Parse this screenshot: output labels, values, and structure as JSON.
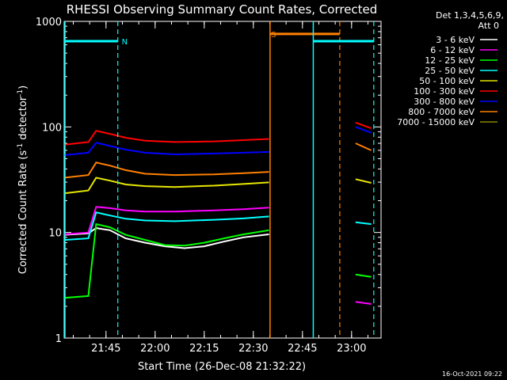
{
  "chart_data": {
    "type": "line",
    "title": "RHESSI Observing Summary Count Rates, Corrected",
    "xlabel": "Start Time (26-Dec-08 21:32:22)",
    "ylabel": "Corrected Count Rate (s",
    "ylabel_sup1": "-1",
    "ylabel_mid": " detector",
    "ylabel_sup2": "-1",
    "ylabel_end": ")",
    "yscale": "log",
    "xlim": [
      21.537,
      23.15
    ],
    "ylim": [
      1,
      1000
    ],
    "x_ticks": [
      {
        "x": 21.75,
        "label": "21:45"
      },
      {
        "x": 22.0,
        "label": "22:00"
      },
      {
        "x": 22.25,
        "label": "22:15"
      },
      {
        "x": 22.5,
        "label": "22:30"
      },
      {
        "x": 22.75,
        "label": "22:45"
      },
      {
        "x": 23.0,
        "label": "23:00"
      }
    ],
    "y_ticks": [
      {
        "y": 1,
        "label": "1"
      },
      {
        "y": 10,
        "label": "10"
      },
      {
        "y": 100,
        "label": "100"
      },
      {
        "y": 1000,
        "label": "1000"
      }
    ],
    "legend": {
      "position": "right",
      "header": [
        "Det 1,3,4,5,6,9,",
        "Att 0"
      ]
    },
    "series": [
      {
        "name": "3 - 6 keV",
        "color": "#ffffff",
        "points": [
          [
            21.537,
            9.5
          ],
          [
            21.66,
            9.8
          ],
          [
            21.7,
            11.0
          ],
          [
            21.77,
            10.5
          ],
          [
            21.85,
            8.8
          ],
          [
            21.95,
            8.0
          ],
          [
            22.05,
            7.4
          ],
          [
            22.15,
            7.1
          ],
          [
            22.25,
            7.4
          ],
          [
            22.35,
            8.2
          ],
          [
            22.45,
            9.0
          ],
          [
            22.58,
            9.6
          ]
        ]
      },
      {
        "name": "6 - 12 keV",
        "color": "#ff00ff",
        "points": [
          [
            21.537,
            9.6
          ],
          [
            21.66,
            10.0
          ],
          [
            21.7,
            17.5
          ],
          [
            21.77,
            17.0
          ],
          [
            21.85,
            16.2
          ],
          [
            21.95,
            15.8
          ],
          [
            22.1,
            15.8
          ],
          [
            22.3,
            16.2
          ],
          [
            22.45,
            16.6
          ],
          [
            22.58,
            17.2
          ],
          [
            23.02,
            2.2
          ],
          [
            23.1,
            2.1
          ]
        ]
      },
      {
        "name": "12 - 25 keV",
        "color": "#00ff00",
        "points": [
          [
            21.537,
            2.4
          ],
          [
            21.66,
            2.5
          ],
          [
            21.7,
            12.0
          ],
          [
            21.77,
            11.2
          ],
          [
            21.85,
            9.5
          ],
          [
            21.95,
            8.5
          ],
          [
            22.05,
            7.6
          ],
          [
            22.15,
            7.5
          ],
          [
            22.25,
            8.0
          ],
          [
            22.35,
            8.8
          ],
          [
            22.45,
            9.6
          ],
          [
            22.58,
            10.5
          ],
          [
            23.02,
            4.0
          ],
          [
            23.1,
            3.8
          ]
        ]
      },
      {
        "name": "25 - 50 keV",
        "color": "#00ffff",
        "points": [
          [
            21.537,
            8.5
          ],
          [
            21.66,
            8.8
          ],
          [
            21.7,
            15.5
          ],
          [
            21.77,
            14.5
          ],
          [
            21.85,
            13.5
          ],
          [
            21.95,
            13.0
          ],
          [
            22.1,
            12.8
          ],
          [
            22.3,
            13.2
          ],
          [
            22.45,
            13.6
          ],
          [
            22.58,
            14.2
          ],
          [
            23.02,
            12.5
          ],
          [
            23.1,
            12.0
          ]
        ]
      },
      {
        "name": "50 - 100 keV",
        "color": "#e6e600",
        "points": [
          [
            21.537,
            23.5
          ],
          [
            21.66,
            25.0
          ],
          [
            21.7,
            33.0
          ],
          [
            21.77,
            31.0
          ],
          [
            21.85,
            28.5
          ],
          [
            21.95,
            27.5
          ],
          [
            22.1,
            27.0
          ],
          [
            22.3,
            27.8
          ],
          [
            22.45,
            28.8
          ],
          [
            22.58,
            29.8
          ],
          [
            23.02,
            32.0
          ],
          [
            23.1,
            29.5
          ]
        ]
      },
      {
        "name": "100 - 300 keV",
        "color": "#ff0000",
        "points": [
          [
            21.537,
            68.0
          ],
          [
            21.66,
            72.0
          ],
          [
            21.7,
            92.0
          ],
          [
            21.77,
            86.0
          ],
          [
            21.85,
            79.0
          ],
          [
            21.95,
            74.0
          ],
          [
            22.1,
            72.0
          ],
          [
            22.3,
            73.0
          ],
          [
            22.45,
            75.0
          ],
          [
            22.58,
            77.0
          ],
          [
            23.02,
            110.0
          ],
          [
            23.1,
            97.0
          ]
        ]
      },
      {
        "name": "300 - 800 keV",
        "color": "#0000ff",
        "points": [
          [
            21.537,
            54.0
          ],
          [
            21.66,
            57.0
          ],
          [
            21.7,
            71.0
          ],
          [
            21.77,
            66.0
          ],
          [
            21.85,
            61.0
          ],
          [
            21.95,
            57.0
          ],
          [
            22.1,
            55.0
          ],
          [
            22.3,
            56.0
          ],
          [
            22.45,
            57.0
          ],
          [
            22.58,
            58.0
          ],
          [
            23.02,
            100.0
          ],
          [
            23.1,
            88.0
          ]
        ]
      },
      {
        "name": "800 - 7000 keV",
        "color": "#ff8000",
        "points": [
          [
            21.537,
            33.0
          ],
          [
            21.66,
            35.0
          ],
          [
            21.7,
            46.0
          ],
          [
            21.77,
            43.0
          ],
          [
            21.85,
            39.0
          ],
          [
            21.95,
            36.0
          ],
          [
            22.1,
            35.0
          ],
          [
            22.3,
            35.5
          ],
          [
            22.45,
            36.5
          ],
          [
            22.58,
            37.5
          ],
          [
            23.02,
            70.0
          ],
          [
            23.1,
            60.0
          ]
        ]
      },
      {
        "name": "7000 - 15000 keV",
        "color": "#888800",
        "points": []
      }
    ],
    "annotations": [
      {
        "text": "N",
        "x": 21.83,
        "y": 650,
        "color": "#00ffff"
      },
      {
        "text": "S",
        "x": 22.59,
        "y": 760,
        "color": "#ff8000"
      }
    ]
  },
  "timestamp": "16-Oct-2021 09:22"
}
